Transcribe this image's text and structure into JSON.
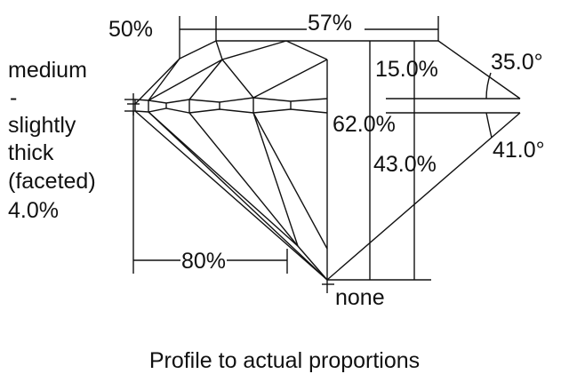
{
  "labels": {
    "crown_percent": "50%",
    "table_percent": "57%",
    "girdle_lines": [
      "medium",
      "-",
      "slightly",
      "thick",
      "(faceted)",
      "4.0%"
    ],
    "crown_height": "15.0%",
    "crown_angle": "35.0°",
    "total_depth": "62.0%",
    "pavilion_depth": "43.0%",
    "pavilion_angle": "41.0°",
    "lower_half": "80%",
    "culet": "none"
  },
  "caption": "Profile to actual proportions",
  "colors": {
    "line": "#111111",
    "background": "#ffffff"
  }
}
